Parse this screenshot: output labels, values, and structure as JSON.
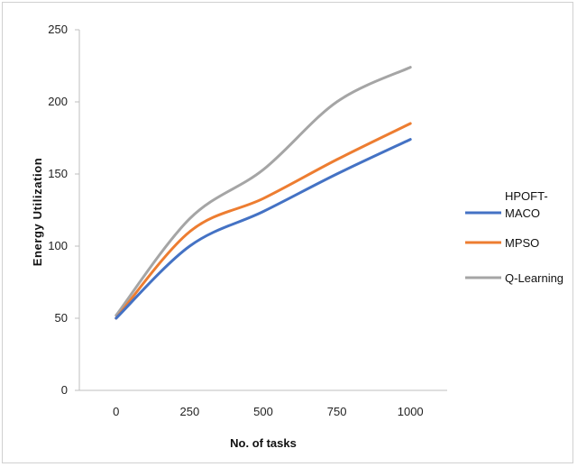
{
  "chart_data": {
    "type": "line",
    "title": "",
    "xlabel": "No. of tasks",
    "ylabel": "Energy Utilization",
    "x": [
      0,
      250,
      500,
      750,
      1000
    ],
    "xlim": [
      -125,
      1125
    ],
    "ylim": [
      0,
      250
    ],
    "y_ticks": [
      0,
      50,
      100,
      150,
      200,
      250
    ],
    "grid": false,
    "legend_position": "right",
    "series": [
      {
        "name": "HPOFT-MACO",
        "color": "#4472c4",
        "values": [
          50,
          100,
          124,
          150,
          174
        ]
      },
      {
        "name": "MPSO",
        "color": "#ed7d31",
        "values": [
          50,
          110,
          133,
          160,
          185
        ]
      },
      {
        "name": "Q-Learning",
        "color": "#a5a5a5",
        "values": [
          52,
          119,
          153,
          200,
          224
        ]
      }
    ]
  }
}
